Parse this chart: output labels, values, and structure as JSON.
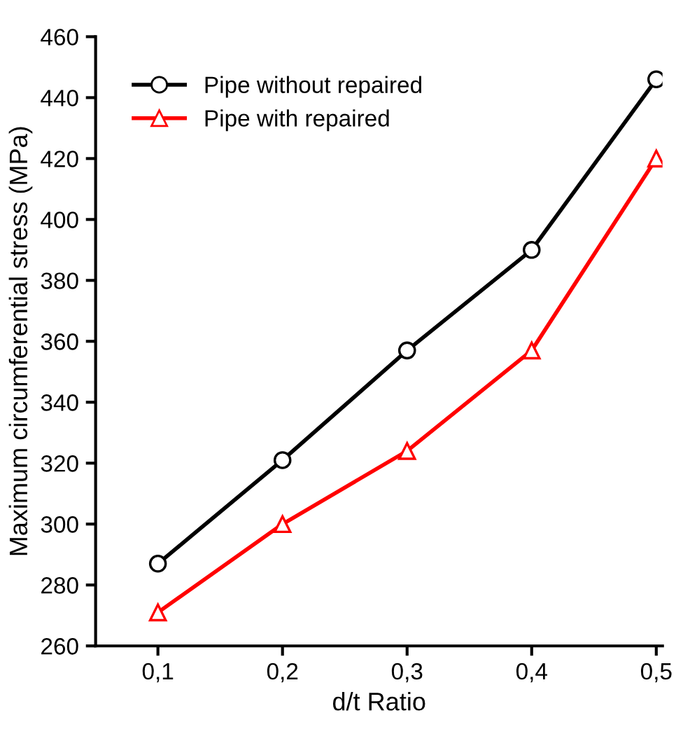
{
  "chart_data": {
    "type": "line",
    "xlabel": "d/t Ratio",
    "ylabel": "Maximum circumferential stress (MPa)",
    "x": [
      0.1,
      0.2,
      0.3,
      0.4,
      0.5
    ],
    "series": [
      {
        "name": "Pipe without repaired",
        "color": "#000000",
        "marker": "circle",
        "values": [
          287,
          321,
          357,
          390,
          446
        ]
      },
      {
        "name": "Pipe with repaired",
        "color": "#ff0000",
        "marker": "triangle",
        "values": [
          271,
          300,
          324,
          357,
          420
        ]
      }
    ],
    "xlim": [
      0.05,
      0.505
    ],
    "ylim": [
      260,
      460
    ],
    "xticks": [
      {
        "value": 0.1,
        "label": "0,1"
      },
      {
        "value": 0.2,
        "label": "0,2"
      },
      {
        "value": 0.3,
        "label": "0,3"
      },
      {
        "value": 0.4,
        "label": "0,4"
      },
      {
        "value": 0.5,
        "label": "0,5"
      }
    ],
    "yticks": [
      260,
      280,
      300,
      320,
      340,
      360,
      380,
      400,
      420,
      440,
      460
    ],
    "legend": "top left",
    "grid": false,
    "line_style": "solid"
  }
}
